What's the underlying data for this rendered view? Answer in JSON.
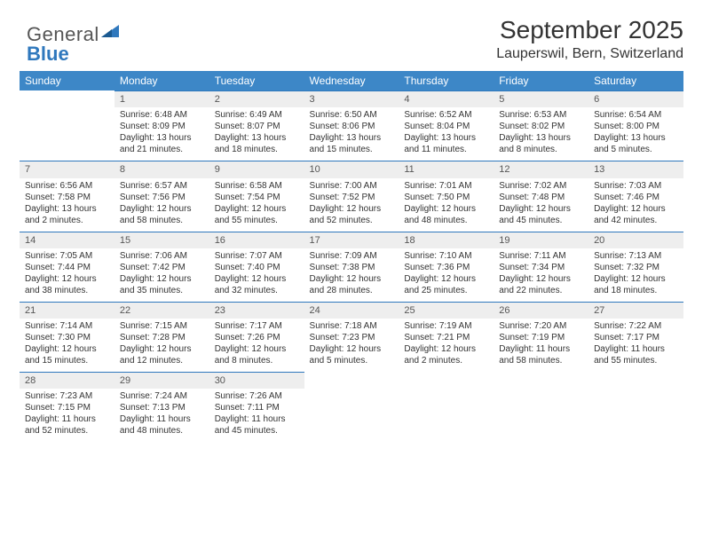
{
  "logo": {
    "part1": "General",
    "part2": "Blue"
  },
  "header": {
    "month_title": "September 2025",
    "location": "Lauperswil, Bern, Switzerland"
  },
  "theme": {
    "header_bg": "#3d87c7",
    "header_fg": "#ffffff",
    "accent_border": "#2f78bd",
    "daynum_bg": "#eeeeee"
  },
  "weekdays": [
    "Sunday",
    "Monday",
    "Tuesday",
    "Wednesday",
    "Thursday",
    "Friday",
    "Saturday"
  ],
  "weeks": [
    [
      null,
      {
        "n": "1",
        "sr": "Sunrise: 6:48 AM",
        "ss": "Sunset: 8:09 PM",
        "dl": "Daylight: 13 hours and 21 minutes."
      },
      {
        "n": "2",
        "sr": "Sunrise: 6:49 AM",
        "ss": "Sunset: 8:07 PM",
        "dl": "Daylight: 13 hours and 18 minutes."
      },
      {
        "n": "3",
        "sr": "Sunrise: 6:50 AM",
        "ss": "Sunset: 8:06 PM",
        "dl": "Daylight: 13 hours and 15 minutes."
      },
      {
        "n": "4",
        "sr": "Sunrise: 6:52 AM",
        "ss": "Sunset: 8:04 PM",
        "dl": "Daylight: 13 hours and 11 minutes."
      },
      {
        "n": "5",
        "sr": "Sunrise: 6:53 AM",
        "ss": "Sunset: 8:02 PM",
        "dl": "Daylight: 13 hours and 8 minutes."
      },
      {
        "n": "6",
        "sr": "Sunrise: 6:54 AM",
        "ss": "Sunset: 8:00 PM",
        "dl": "Daylight: 13 hours and 5 minutes."
      }
    ],
    [
      {
        "n": "7",
        "sr": "Sunrise: 6:56 AM",
        "ss": "Sunset: 7:58 PM",
        "dl": "Daylight: 13 hours and 2 minutes."
      },
      {
        "n": "8",
        "sr": "Sunrise: 6:57 AM",
        "ss": "Sunset: 7:56 PM",
        "dl": "Daylight: 12 hours and 58 minutes."
      },
      {
        "n": "9",
        "sr": "Sunrise: 6:58 AM",
        "ss": "Sunset: 7:54 PM",
        "dl": "Daylight: 12 hours and 55 minutes."
      },
      {
        "n": "10",
        "sr": "Sunrise: 7:00 AM",
        "ss": "Sunset: 7:52 PM",
        "dl": "Daylight: 12 hours and 52 minutes."
      },
      {
        "n": "11",
        "sr": "Sunrise: 7:01 AM",
        "ss": "Sunset: 7:50 PM",
        "dl": "Daylight: 12 hours and 48 minutes."
      },
      {
        "n": "12",
        "sr": "Sunrise: 7:02 AM",
        "ss": "Sunset: 7:48 PM",
        "dl": "Daylight: 12 hours and 45 minutes."
      },
      {
        "n": "13",
        "sr": "Sunrise: 7:03 AM",
        "ss": "Sunset: 7:46 PM",
        "dl": "Daylight: 12 hours and 42 minutes."
      }
    ],
    [
      {
        "n": "14",
        "sr": "Sunrise: 7:05 AM",
        "ss": "Sunset: 7:44 PM",
        "dl": "Daylight: 12 hours and 38 minutes."
      },
      {
        "n": "15",
        "sr": "Sunrise: 7:06 AM",
        "ss": "Sunset: 7:42 PM",
        "dl": "Daylight: 12 hours and 35 minutes."
      },
      {
        "n": "16",
        "sr": "Sunrise: 7:07 AM",
        "ss": "Sunset: 7:40 PM",
        "dl": "Daylight: 12 hours and 32 minutes."
      },
      {
        "n": "17",
        "sr": "Sunrise: 7:09 AM",
        "ss": "Sunset: 7:38 PM",
        "dl": "Daylight: 12 hours and 28 minutes."
      },
      {
        "n": "18",
        "sr": "Sunrise: 7:10 AM",
        "ss": "Sunset: 7:36 PM",
        "dl": "Daylight: 12 hours and 25 minutes."
      },
      {
        "n": "19",
        "sr": "Sunrise: 7:11 AM",
        "ss": "Sunset: 7:34 PM",
        "dl": "Daylight: 12 hours and 22 minutes."
      },
      {
        "n": "20",
        "sr": "Sunrise: 7:13 AM",
        "ss": "Sunset: 7:32 PM",
        "dl": "Daylight: 12 hours and 18 minutes."
      }
    ],
    [
      {
        "n": "21",
        "sr": "Sunrise: 7:14 AM",
        "ss": "Sunset: 7:30 PM",
        "dl": "Daylight: 12 hours and 15 minutes."
      },
      {
        "n": "22",
        "sr": "Sunrise: 7:15 AM",
        "ss": "Sunset: 7:28 PM",
        "dl": "Daylight: 12 hours and 12 minutes."
      },
      {
        "n": "23",
        "sr": "Sunrise: 7:17 AM",
        "ss": "Sunset: 7:26 PM",
        "dl": "Daylight: 12 hours and 8 minutes."
      },
      {
        "n": "24",
        "sr": "Sunrise: 7:18 AM",
        "ss": "Sunset: 7:23 PM",
        "dl": "Daylight: 12 hours and 5 minutes."
      },
      {
        "n": "25",
        "sr": "Sunrise: 7:19 AM",
        "ss": "Sunset: 7:21 PM",
        "dl": "Daylight: 12 hours and 2 minutes."
      },
      {
        "n": "26",
        "sr": "Sunrise: 7:20 AM",
        "ss": "Sunset: 7:19 PM",
        "dl": "Daylight: 11 hours and 58 minutes."
      },
      {
        "n": "27",
        "sr": "Sunrise: 7:22 AM",
        "ss": "Sunset: 7:17 PM",
        "dl": "Daylight: 11 hours and 55 minutes."
      }
    ],
    [
      {
        "n": "28",
        "sr": "Sunrise: 7:23 AM",
        "ss": "Sunset: 7:15 PM",
        "dl": "Daylight: 11 hours and 52 minutes."
      },
      {
        "n": "29",
        "sr": "Sunrise: 7:24 AM",
        "ss": "Sunset: 7:13 PM",
        "dl": "Daylight: 11 hours and 48 minutes."
      },
      {
        "n": "30",
        "sr": "Sunrise: 7:26 AM",
        "ss": "Sunset: 7:11 PM",
        "dl": "Daylight: 11 hours and 45 minutes."
      },
      null,
      null,
      null,
      null
    ]
  ]
}
